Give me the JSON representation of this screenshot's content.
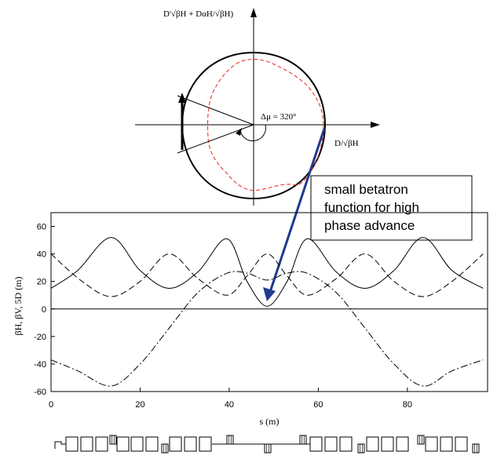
{
  "phase_space": {
    "vertical_axis_label": "D'√βH + DαH/√βH)",
    "horizontal_axis_label": "D/√βH",
    "phase_advance_label": "Δμ = 320°"
  },
  "callout": {
    "lines": [
      "small betatron",
      "function for high",
      "phase advance"
    ]
  },
  "lattice_plot": {
    "ylabel": "βH, βV, 5D (m)",
    "xlabel": "s (m)"
  },
  "chart_data": {
    "type": "line",
    "xlabel": "s (m)",
    "ylabel": "βH, βV, 5D (m)",
    "xlim": [
      0,
      98
    ],
    "ylim": [
      -60,
      70
    ],
    "x_ticks": [
      "0",
      "20",
      "40",
      "60",
      "80"
    ],
    "y_ticks": [
      "60",
      "40",
      "20",
      "0",
      "-20",
      "-40",
      "-60"
    ],
    "series": [
      {
        "style": "solid",
        "x": [
          0,
          6,
          13.5,
          20,
          26.5,
          33,
          39.5,
          44,
          48.5,
          53,
          57.5,
          64,
          70.5,
          77,
          83.5,
          90,
          97
        ],
        "y": [
          15,
          28,
          52,
          28,
          15,
          27,
          51,
          20,
          2,
          20,
          51,
          27,
          15,
          28,
          52,
          28,
          15
        ]
      },
      {
        "style": "dashed",
        "x": [
          0,
          7,
          13.5,
          20,
          26.5,
          33,
          39.5,
          44,
          48.5,
          53,
          57.5,
          64,
          70.5,
          77,
          83.5,
          90,
          97
        ],
        "y": [
          40,
          20,
          9,
          20,
          40,
          22,
          10,
          24,
          40,
          24,
          10,
          22,
          40,
          20,
          9,
          20,
          40
        ]
      },
      {
        "style": "dash-dot",
        "x": [
          0,
          6,
          13.5,
          20,
          26.5,
          33,
          39.5,
          44,
          48.5,
          53,
          57.5,
          64,
          70.5,
          77,
          83.5,
          90,
          97
        ],
        "y": [
          -37,
          -45,
          -56,
          -40,
          -14,
          12,
          26,
          26,
          21,
          26,
          26,
          12,
          -14,
          -40,
          -56,
          -45,
          -37
        ]
      }
    ]
  }
}
